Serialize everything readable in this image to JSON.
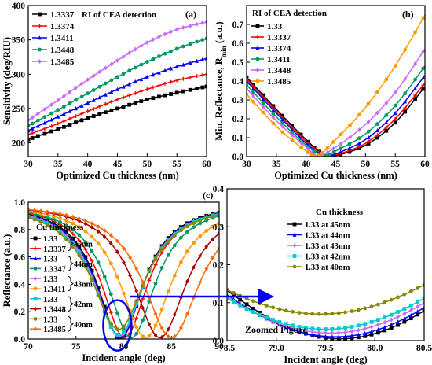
{
  "chart_data": [
    {
      "panel": "(a)",
      "type": "line",
      "xlabel": "Optimized Cu thickness (nm)",
      "ylabel": "Sensitivity (deg/RIU)",
      "xlim": [
        30,
        60
      ],
      "ylim": [
        180,
        400
      ],
      "xticks": [
        30,
        35,
        40,
        45,
        50,
        55,
        60
      ],
      "yticks": [
        200,
        250,
        300,
        350,
        400
      ],
      "legend_title": "RI of CEA detection",
      "legend_position": "top-left",
      "series": [
        {
          "name": "1.3337",
          "color": "#000000",
          "marker": "square",
          "values": [
            {
              "x": 30,
              "y": 205
            },
            {
              "x": 35,
              "y": 220
            },
            {
              "x": 40,
              "y": 236
            },
            {
              "x": 45,
              "y": 250
            },
            {
              "x": 50,
              "y": 263
            },
            {
              "x": 55,
              "y": 273
            },
            {
              "x": 60,
              "y": 282
            }
          ]
        },
        {
          "name": "1.3374",
          "color": "#ff0000",
          "marker": "plus",
          "values": [
            {
              "x": 30,
              "y": 212
            },
            {
              "x": 35,
              "y": 228
            },
            {
              "x": 40,
              "y": 246
            },
            {
              "x": 45,
              "y": 263
            },
            {
              "x": 50,
              "y": 278
            },
            {
              "x": 55,
              "y": 291
            },
            {
              "x": 60,
              "y": 300
            }
          ]
        },
        {
          "name": "1.3411",
          "color": "#0000ff",
          "marker": "triangle",
          "values": [
            {
              "x": 30,
              "y": 218
            },
            {
              "x": 35,
              "y": 238
            },
            {
              "x": 40,
              "y": 258
            },
            {
              "x": 45,
              "y": 278
            },
            {
              "x": 50,
              "y": 296
            },
            {
              "x": 55,
              "y": 311
            },
            {
              "x": 60,
              "y": 323
            }
          ]
        },
        {
          "name": "1.3448",
          "color": "#009966",
          "marker": "circle",
          "values": [
            {
              "x": 30,
              "y": 225
            },
            {
              "x": 35,
              "y": 248
            },
            {
              "x": 40,
              "y": 272
            },
            {
              "x": 45,
              "y": 296
            },
            {
              "x": 50,
              "y": 318
            },
            {
              "x": 55,
              "y": 337
            },
            {
              "x": 60,
              "y": 352
            }
          ]
        },
        {
          "name": "1.3485",
          "color": "#cc66ff",
          "marker": "diamond",
          "values": [
            {
              "x": 30,
              "y": 233
            },
            {
              "x": 35,
              "y": 262
            },
            {
              "x": 40,
              "y": 292
            },
            {
              "x": 45,
              "y": 320
            },
            {
              "x": 50,
              "y": 346
            },
            {
              "x": 55,
              "y": 365
            },
            {
              "x": 60,
              "y": 376
            }
          ]
        }
      ]
    },
    {
      "panel": "(b)",
      "type": "line",
      "xlabel": "Optimized Cu thickness (nm)",
      "ylabel": "Min. Reflectance, R_min (a.u.)",
      "xlim": [
        30,
        60
      ],
      "ylim": [
        0,
        0.8
      ],
      "xticks": [
        30,
        35,
        40,
        45,
        50,
        55,
        60
      ],
      "yticks": [
        0.0,
        0.1,
        0.2,
        0.3,
        0.4,
        0.5,
        0.6,
        0.7
      ],
      "legend_title": "RI of CEA detection",
      "legend_position": "top-left",
      "series": [
        {
          "name": "1.33",
          "color": "#000000",
          "marker": "square",
          "values": [
            {
              "x": 30,
              "y": 0.42
            },
            {
              "x": 35,
              "y": 0.25
            },
            {
              "x": 40,
              "y": 0.09
            },
            {
              "x": 43,
              "y": 0.01
            },
            {
              "x": 45,
              "y": 0.005
            },
            {
              "x": 50,
              "y": 0.06
            },
            {
              "x": 55,
              "y": 0.18
            },
            {
              "x": 60,
              "y": 0.37
            }
          ]
        },
        {
          "name": "1.3337",
          "color": "#ff0000",
          "marker": "plus",
          "values": [
            {
              "x": 30,
              "y": 0.41
            },
            {
              "x": 35,
              "y": 0.24
            },
            {
              "x": 40,
              "y": 0.08
            },
            {
              "x": 43,
              "y": 0.01
            },
            {
              "x": 45,
              "y": 0.01
            },
            {
              "x": 50,
              "y": 0.07
            },
            {
              "x": 55,
              "y": 0.2
            },
            {
              "x": 60,
              "y": 0.39
            }
          ]
        },
        {
          "name": "1.3374",
          "color": "#0000ff",
          "marker": "triangle",
          "values": [
            {
              "x": 30,
              "y": 0.4
            },
            {
              "x": 35,
              "y": 0.23
            },
            {
              "x": 40,
              "y": 0.07
            },
            {
              "x": 43,
              "y": 0.005
            },
            {
              "x": 45,
              "y": 0.015
            },
            {
              "x": 50,
              "y": 0.09
            },
            {
              "x": 55,
              "y": 0.23
            },
            {
              "x": 60,
              "y": 0.43
            }
          ]
        },
        {
          "name": "1.3411",
          "color": "#009966",
          "marker": "circle",
          "values": [
            {
              "x": 30,
              "y": 0.38
            },
            {
              "x": 35,
              "y": 0.21
            },
            {
              "x": 40,
              "y": 0.06
            },
            {
              "x": 43,
              "y": 0.005
            },
            {
              "x": 45,
              "y": 0.03
            },
            {
              "x": 50,
              "y": 0.12
            },
            {
              "x": 55,
              "y": 0.27
            },
            {
              "x": 60,
              "y": 0.48
            }
          ]
        },
        {
          "name": "1.3448",
          "color": "#cc66ff",
          "marker": "diamond",
          "values": [
            {
              "x": 30,
              "y": 0.36
            },
            {
              "x": 35,
              "y": 0.19
            },
            {
              "x": 40,
              "y": 0.05
            },
            {
              "x": 42,
              "y": 0.005
            },
            {
              "x": 45,
              "y": 0.05
            },
            {
              "x": 50,
              "y": 0.17
            },
            {
              "x": 55,
              "y": 0.34
            },
            {
              "x": 60,
              "y": 0.57
            }
          ]
        },
        {
          "name": "1.3485",
          "color": "#ff9900",
          "marker": "circle",
          "values": [
            {
              "x": 30,
              "y": 0.33
            },
            {
              "x": 35,
              "y": 0.16
            },
            {
              "x": 40,
              "y": 0.03
            },
            {
              "x": 42,
              "y": 0.005
            },
            {
              "x": 45,
              "y": 0.09
            },
            {
              "x": 50,
              "y": 0.26
            },
            {
              "x": 55,
              "y": 0.48
            },
            {
              "x": 60,
              "y": 0.75
            }
          ]
        }
      ]
    },
    {
      "panel": "(c)",
      "type": "line",
      "xlabel": "Incident angle  (deg)",
      "ylabel": "Reflectance (a.u.)",
      "xlim": [
        70,
        90
      ],
      "ylim": [
        0,
        1.0
      ],
      "xticks": [
        70,
        75,
        80,
        85,
        90
      ],
      "yticks": [
        0.0,
        0.2,
        0.4,
        0.6,
        0.8,
        1.0
      ],
      "legend_title": "Cu thickness",
      "legend_position": "left",
      "legend_groups": [
        "45nm",
        "44nm",
        "43nm",
        "42nm",
        "40nm"
      ],
      "series": [
        {
          "name": "1.33",
          "group": "45nm",
          "color": "#000000",
          "marker": "square",
          "resonance_angle": 79.65,
          "min_reflectance": 0.005,
          "half_width": 3.0
        },
        {
          "name": "1.3337",
          "group": "45nm",
          "color": "#ff0000",
          "marker": "plus",
          "resonance_angle": 80.1,
          "min_reflectance": 0.01,
          "half_width": 3.0
        },
        {
          "name": "1.33",
          "group": "44nm",
          "color": "#0000ff",
          "marker": "triangle",
          "resonance_angle": 79.6,
          "min_reflectance": 0.01,
          "half_width": 3.1
        },
        {
          "name": "1.3347",
          "group": "44nm",
          "color": "#009966",
          "marker": "circle",
          "resonance_angle": 80.8,
          "min_reflectance": 0.01,
          "half_width": 3.1
        },
        {
          "name": "1.33",
          "group": "43nm",
          "color": "#cc66ff",
          "marker": "diamond",
          "resonance_angle": 79.55,
          "min_reflectance": 0.02,
          "half_width": 3.2
        },
        {
          "name": "1.3411",
          "group": "43nm",
          "color": "#ff9900",
          "marker": "circle",
          "resonance_angle": 82.3,
          "min_reflectance": 0.01,
          "half_width": 3.3
        },
        {
          "name": "1.33",
          "group": "42nm",
          "color": "#00cccc",
          "marker": "square",
          "resonance_angle": 79.5,
          "min_reflectance": 0.03,
          "half_width": 3.3
        },
        {
          "name": "1.3448",
          "group": "42nm",
          "color": "#aa0000",
          "marker": "diamond",
          "resonance_angle": 83.8,
          "min_reflectance": 0.01,
          "half_width": 3.4
        },
        {
          "name": "1.33",
          "group": "40nm",
          "color": "#888800",
          "marker": "circle",
          "resonance_angle": 79.45,
          "min_reflectance": 0.07,
          "half_width": 3.5
        },
        {
          "name": "1.3485",
          "group": "40nm",
          "color": "#ff6600",
          "marker": "diamond",
          "resonance_angle": 85.0,
          "min_reflectance": 0.01,
          "half_width": 3.6
        }
      ],
      "highlight": {
        "x_center": 79.5,
        "y_center": 0.1,
        "color": "#0000ee"
      }
    },
    {
      "panel": "zoom",
      "type": "line",
      "xlabel": "Incident angle  (deg)",
      "ylabel": "",
      "xlim": [
        78.5,
        80.5
      ],
      "ylim": [
        0,
        0.4
      ],
      "xticks": [
        78.5,
        79.0,
        79.5,
        80.0,
        80.5
      ],
      "yticks": [
        0.0,
        0.1,
        0.2,
        0.3,
        0.4
      ],
      "annotation": "Zoomed Figure",
      "legend_title": "Cu thickness",
      "legend_position": "top-right",
      "series": [
        {
          "name": "1.33   at 45nm",
          "color": "#000000",
          "marker": "square",
          "resonance_angle": 79.65,
          "min_reflectance": 0.005,
          "half_width": 3.0
        },
        {
          "name": "1.33   at 44nm",
          "color": "#0000ff",
          "marker": "triangle",
          "resonance_angle": 79.6,
          "min_reflectance": 0.01,
          "half_width": 3.1
        },
        {
          "name": "1.33   at 43nm",
          "color": "#cc66ff",
          "marker": "diamond",
          "resonance_angle": 79.55,
          "min_reflectance": 0.02,
          "half_width": 3.2
        },
        {
          "name": "1.33   at 42nm",
          "color": "#00cccc",
          "marker": "square",
          "resonance_angle": 79.5,
          "min_reflectance": 0.03,
          "half_width": 3.3
        },
        {
          "name": "1.33   at 40nm",
          "color": "#888800",
          "marker": "circle",
          "resonance_angle": 79.45,
          "min_reflectance": 0.07,
          "half_width": 3.5
        }
      ]
    }
  ],
  "arrow_color": "#0000ee"
}
